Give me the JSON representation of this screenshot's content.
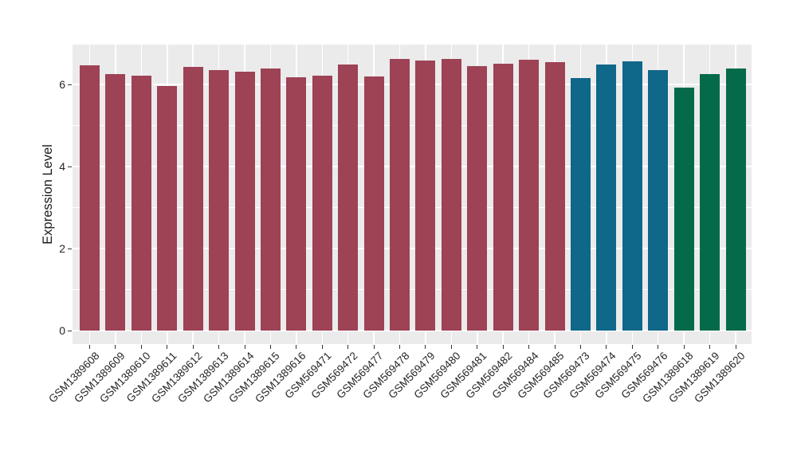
{
  "chart_data": {
    "type": "bar",
    "title": "",
    "xlabel": "",
    "ylabel": "Expression Level",
    "ylim": [
      0,
      6.96
    ],
    "yticks": [
      0,
      2,
      4,
      6
    ],
    "minor_gridlines": [
      1,
      3,
      5
    ],
    "grid": "on",
    "legend": "none",
    "panel_background": "#EBEBEB",
    "gridline_color": "#FFFFFF",
    "axis_text_color": "#262626",
    "categories": [
      "GSM1389608",
      "GSM1389609",
      "GSM1389610",
      "GSM1389611",
      "GSM1389612",
      "GSM1389613",
      "GSM1389614",
      "GSM1389615",
      "GSM1389616",
      "GSM569471",
      "GSM569472",
      "GSM569477",
      "GSM569478",
      "GSM569479",
      "GSM569480",
      "GSM569481",
      "GSM569482",
      "GSM569484",
      "GSM569485",
      "GSM569473",
      "GSM569474",
      "GSM569475",
      "GSM569476",
      "GSM1389618",
      "GSM1389619",
      "GSM1389620"
    ],
    "values": [
      6.47,
      6.27,
      6.22,
      5.96,
      6.43,
      6.35,
      6.32,
      6.39,
      6.19,
      6.23,
      6.49,
      6.21,
      6.63,
      6.6,
      6.63,
      6.45,
      6.52,
      6.61,
      6.55,
      6.16,
      6.49,
      6.57,
      6.35,
      5.93,
      6.26,
      6.39
    ],
    "bar_color_groups": [
      {
        "color": "#9E4255",
        "start_index": 0,
        "count": 19
      },
      {
        "color": "#0F678A",
        "start_index": 19,
        "count": 4
      },
      {
        "color": "#046A4A",
        "start_index": 23,
        "count": 3
      }
    ]
  }
}
